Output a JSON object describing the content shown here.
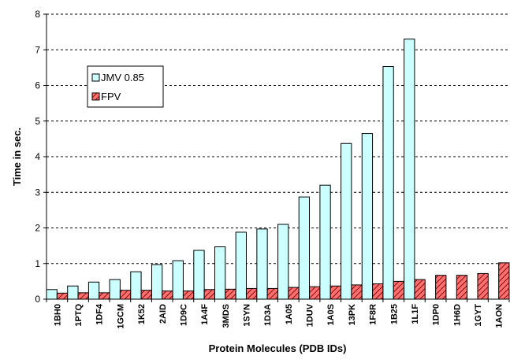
{
  "chart_data": {
    "type": "bar",
    "xlabel": "Protein Molecules (PDB IDs)",
    "ylabel": "Time in sec.",
    "ylim": [
      0,
      8
    ],
    "yticks": [
      0,
      1,
      2,
      3,
      4,
      5,
      6,
      7,
      8
    ],
    "grid": "horizontal dashed",
    "legend_position": "top-left",
    "categories": [
      "1BH0",
      "1PTQ",
      "1DF4",
      "1GCM",
      "1K52",
      "2AID",
      "1D9C",
      "1A4F",
      "3MDS",
      "1SYN",
      "1D3A",
      "1A05",
      "1DUV",
      "1A0S",
      "13PK",
      "1F8R",
      "1B25",
      "1L1F",
      "1DP0",
      "1H6D",
      "1GYT",
      "1AON"
    ],
    "series": [
      {
        "name": "JMV 0.85",
        "color": "#ccffff",
        "pattern": "solid",
        "values": [
          0.27,
          0.37,
          0.48,
          0.55,
          0.77,
          0.97,
          1.08,
          1.37,
          1.47,
          1.88,
          1.97,
          2.1,
          2.87,
          3.2,
          4.37,
          4.65,
          6.53,
          7.3,
          null,
          null,
          null,
          null
        ]
      },
      {
        "name": "FPV",
        "color": "#ff6666",
        "pattern": "diagonal-hatch",
        "values": [
          0.17,
          0.18,
          0.18,
          0.25,
          0.25,
          0.23,
          0.23,
          0.27,
          0.28,
          0.3,
          0.3,
          0.33,
          0.35,
          0.37,
          0.4,
          0.43,
          0.5,
          0.55,
          0.67,
          0.67,
          0.72,
          1.02
        ]
      }
    ]
  }
}
